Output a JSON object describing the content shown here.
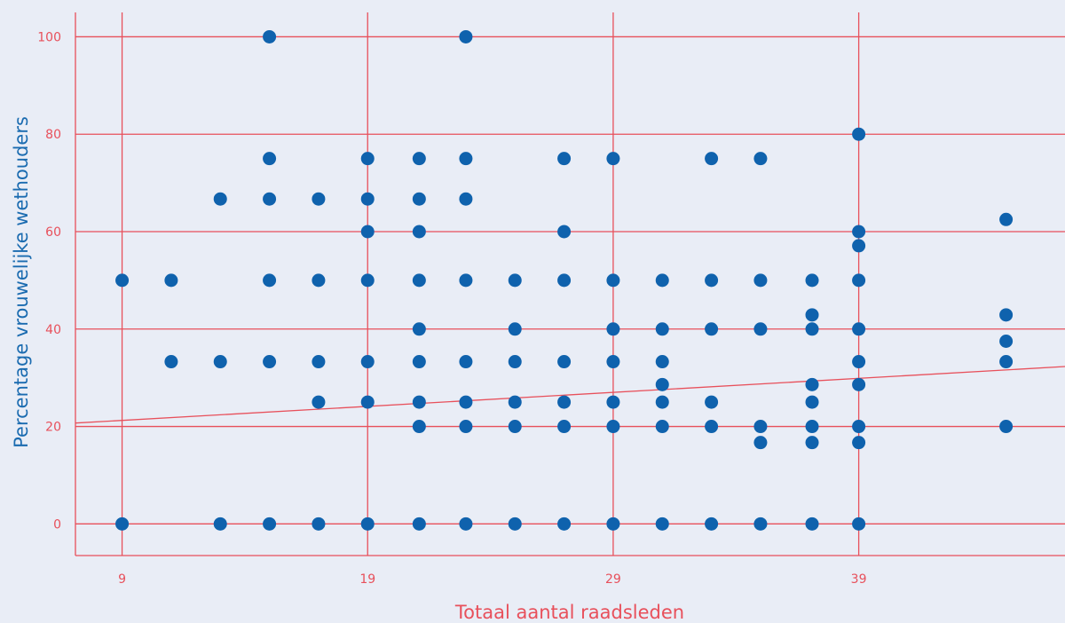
{
  "colors": {
    "background": "#e9edf6",
    "grid": "#e8505b",
    "axis_line": "#e8505b",
    "points": "#0f62ad",
    "trend": "#e8505b",
    "ylabel": "#1a6bb0",
    "xlabel": "#e8505b"
  },
  "chart_data": {
    "type": "scatter",
    "title": "",
    "xlabel": "Totaal aantal raadsleden",
    "ylabel": "Percentage vrouwelijke wethouders",
    "xlim": [
      7.1,
      47.4
    ],
    "ylim": [
      -6.5,
      105
    ],
    "x_ticks": [
      9,
      19,
      29,
      39
    ],
    "y_ticks": [
      0,
      20,
      40,
      60,
      80,
      100
    ],
    "grid": true,
    "trendline": {
      "x": [
        7.1,
        47.4
      ],
      "y": [
        20.7,
        32.3
      ]
    },
    "points": [
      [
        9,
        50
      ],
      [
        9,
        0
      ],
      [
        11,
        50
      ],
      [
        11,
        33.3
      ],
      [
        13,
        66.7
      ],
      [
        13,
        33.3
      ],
      [
        13,
        0
      ],
      [
        15,
        100
      ],
      [
        15,
        75
      ],
      [
        15,
        66.7
      ],
      [
        15,
        50
      ],
      [
        15,
        33.3
      ],
      [
        15,
        0
      ],
      [
        17,
        66.7
      ],
      [
        17,
        50
      ],
      [
        17,
        33.3
      ],
      [
        17,
        25
      ],
      [
        17,
        0
      ],
      [
        19,
        75
      ],
      [
        19,
        66.7
      ],
      [
        19,
        60
      ],
      [
        19,
        50
      ],
      [
        19,
        33.3
      ],
      [
        19,
        25
      ],
      [
        19,
        0
      ],
      [
        21.1,
        75
      ],
      [
        21.1,
        66.7
      ],
      [
        21.1,
        60
      ],
      [
        21.1,
        50
      ],
      [
        21.1,
        40
      ],
      [
        21.1,
        33.3
      ],
      [
        21.1,
        25
      ],
      [
        21.1,
        20
      ],
      [
        21.1,
        0
      ],
      [
        23,
        100
      ],
      [
        23,
        75
      ],
      [
        23,
        66.7
      ],
      [
        23,
        50
      ],
      [
        23,
        33.3
      ],
      [
        23,
        25
      ],
      [
        23,
        20
      ],
      [
        23,
        0
      ],
      [
        25,
        50
      ],
      [
        25,
        40
      ],
      [
        25,
        33.3
      ],
      [
        25,
        25
      ],
      [
        25,
        20
      ],
      [
        25,
        0
      ],
      [
        27,
        75
      ],
      [
        27,
        60
      ],
      [
        27,
        50
      ],
      [
        27,
        33.3
      ],
      [
        27,
        25
      ],
      [
        27,
        20
      ],
      [
        27,
        0
      ],
      [
        29,
        75
      ],
      [
        29,
        50
      ],
      [
        29,
        40
      ],
      [
        29,
        33.3
      ],
      [
        29,
        25
      ],
      [
        29,
        20
      ],
      [
        29,
        0
      ],
      [
        31,
        50
      ],
      [
        31,
        40
      ],
      [
        31,
        33.3
      ],
      [
        31,
        28.6
      ],
      [
        31,
        25
      ],
      [
        31,
        20
      ],
      [
        31,
        0
      ],
      [
        33,
        75
      ],
      [
        33,
        50
      ],
      [
        33,
        40
      ],
      [
        33,
        25
      ],
      [
        33,
        20
      ],
      [
        33,
        0
      ],
      [
        35,
        75
      ],
      [
        35,
        50
      ],
      [
        35,
        40
      ],
      [
        35,
        20
      ],
      [
        35,
        16.7
      ],
      [
        35,
        0
      ],
      [
        37.1,
        50
      ],
      [
        37.1,
        42.9
      ],
      [
        37.1,
        40
      ],
      [
        37.1,
        28.6
      ],
      [
        37.1,
        25
      ],
      [
        37.1,
        20
      ],
      [
        37.1,
        16.7
      ],
      [
        37.1,
        0
      ],
      [
        39,
        80
      ],
      [
        39,
        60
      ],
      [
        39,
        57.1
      ],
      [
        39,
        50
      ],
      [
        39,
        40
      ],
      [
        39,
        33.3
      ],
      [
        39,
        28.6
      ],
      [
        39,
        20
      ],
      [
        39,
        16.7
      ],
      [
        39,
        0
      ],
      [
        45,
        62.5
      ],
      [
        45,
        42.9
      ],
      [
        45,
        37.5
      ],
      [
        45,
        33.3
      ],
      [
        45,
        20
      ]
    ]
  }
}
